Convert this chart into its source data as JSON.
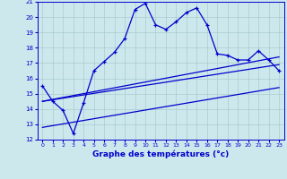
{
  "xlabel": "Graphe des températures (°c)",
  "bg_color": "#cce8ed",
  "grid_color": "#aacccc",
  "line_color": "#0000cc",
  "xlim": [
    -0.5,
    23.5
  ],
  "ylim": [
    12,
    21
  ],
  "yticks": [
    12,
    13,
    14,
    15,
    16,
    17,
    18,
    19,
    20,
    21
  ],
  "xticks": [
    0,
    1,
    2,
    3,
    4,
    5,
    6,
    7,
    8,
    9,
    10,
    11,
    12,
    13,
    14,
    15,
    16,
    17,
    18,
    19,
    20,
    21,
    22,
    23
  ],
  "main_x": [
    0,
    1,
    2,
    3,
    4,
    5,
    6,
    7,
    8,
    9,
    10,
    11,
    12,
    13,
    14,
    15,
    16,
    17,
    18,
    19,
    20,
    21,
    22,
    23
  ],
  "main_y": [
    15.5,
    14.5,
    13.9,
    12.4,
    14.4,
    16.5,
    17.1,
    17.7,
    18.6,
    20.5,
    20.9,
    19.5,
    19.2,
    19.7,
    20.3,
    20.6,
    19.5,
    17.6,
    17.5,
    17.2,
    17.2,
    17.8,
    17.2,
    16.5
  ],
  "trend1_x": [
    0,
    23
  ],
  "trend1_y": [
    14.5,
    16.9
  ],
  "trend2_x": [
    0,
    23
  ],
  "trend2_y": [
    14.5,
    17.4
  ],
  "trend3_x": [
    0,
    23
  ],
  "trend3_y": [
    12.8,
    15.4
  ]
}
